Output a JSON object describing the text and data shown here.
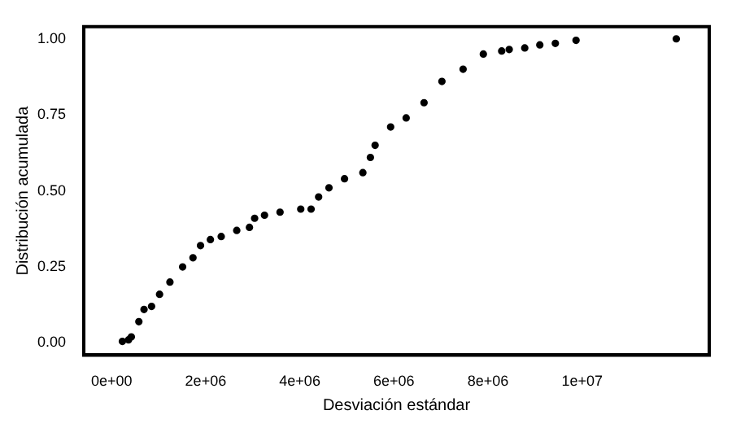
{
  "chart_data": {
    "type": "scatter",
    "xlabel": "Desviación estándar",
    "ylabel": "Distribución acumulada",
    "x": [
      230000,
      360000,
      420000,
      580000,
      690000,
      850000,
      1020000,
      1240000,
      1510000,
      1730000,
      1890000,
      2100000,
      2330000,
      2660000,
      2930000,
      3040000,
      3250000,
      3580000,
      4020000,
      4240000,
      4400000,
      4620000,
      4950000,
      5340000,
      5500000,
      5600000,
      5930000,
      6260000,
      6640000,
      7020000,
      7470000,
      7900000,
      8290000,
      8450000,
      8780000,
      9100000,
      9430000,
      9870000,
      12000000
    ],
    "values": [
      0.005,
      0.01,
      0.02,
      0.07,
      0.11,
      0.12,
      0.16,
      0.2,
      0.25,
      0.28,
      0.32,
      0.34,
      0.35,
      0.37,
      0.38,
      0.41,
      0.42,
      0.43,
      0.44,
      0.44,
      0.48,
      0.51,
      0.54,
      0.56,
      0.61,
      0.65,
      0.71,
      0.74,
      0.79,
      0.86,
      0.9,
      0.95,
      0.96,
      0.965,
      0.97,
      0.98,
      0.985,
      0.995,
      1.0
    ],
    "color": "#000000",
    "marker": "circle",
    "grid": false,
    "legend": false,
    "xlim": [
      -590000,
      12700000
    ],
    "ylim": [
      -0.04,
      1.04
    ],
    "xticks": [
      {
        "value": 0,
        "label": "0e+00"
      },
      {
        "value": 2000000,
        "label": "2e+06"
      },
      {
        "value": 4000000,
        "label": "4e+06"
      },
      {
        "value": 6000000,
        "label": "6e+06"
      },
      {
        "value": 8000000,
        "label": "8e+06"
      },
      {
        "value": 10000000,
        "label": "1e+07"
      }
    ],
    "yticks": [
      {
        "value": 0,
        "label": "0.00"
      },
      {
        "value": 0.25,
        "label": "0.25"
      },
      {
        "value": 0.5,
        "label": "0.50"
      },
      {
        "value": 0.75,
        "label": "0.75"
      },
      {
        "value": 1,
        "label": "1.00"
      }
    ]
  }
}
